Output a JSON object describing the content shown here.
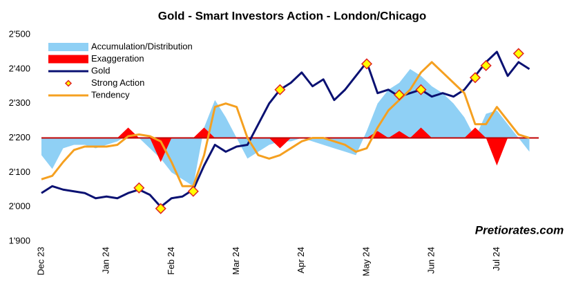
{
  "chart_data": {
    "type": "line",
    "title": "Gold - Smart Investors Action - London/Chicago",
    "watermark": "Pretiorates.com",
    "categories": [
      "Dec 23",
      null,
      null,
      null,
      null,
      null,
      "Jan 24",
      null,
      null,
      null,
      null,
      null,
      "Feb 24",
      null,
      null,
      null,
      null,
      null,
      "Mar 24",
      null,
      null,
      null,
      null,
      null,
      "Apr 24",
      null,
      null,
      null,
      null,
      null,
      "May 24",
      null,
      null,
      null,
      null,
      null,
      "Jun 24",
      null,
      null,
      null,
      null,
      null,
      "Jul 24",
      null,
      null,
      null
    ],
    "ylim": [
      1900,
      2500
    ],
    "yticks": [
      {
        "value": 1900,
        "label": "1'900"
      },
      {
        "value": 2000,
        "label": "2'000"
      },
      {
        "value": 2100,
        "label": "2'100"
      },
      {
        "value": 2200,
        "label": "2'200"
      },
      {
        "value": 2300,
        "label": "2'300"
      },
      {
        "value": 2400,
        "label": "2'400"
      },
      {
        "value": 2500,
        "label": "2'500"
      }
    ],
    "reference_line": {
      "value": 2200,
      "color": "#c00000"
    },
    "legend": "upper left",
    "series": [
      {
        "name": "Accumulation/Distribution",
        "kind": "area",
        "color": "#8fd0f5",
        "values": [
          2150,
          2110,
          2170,
          2180,
          2180,
          2170,
          2180,
          2190,
          2210,
          2200,
          2170,
          2140,
          2100,
          2080,
          2060,
          2230,
          2310,
          2260,
          2200,
          2140,
          2160,
          2180,
          2190,
          2190,
          2200,
          2190,
          2180,
          2170,
          2160,
          2150,
          2220,
          2300,
          2340,
          2360,
          2400,
          2380,
          2350,
          2330,
          2300,
          2260,
          2200,
          2270,
          2280,
          2240,
          2200,
          2160
        ]
      },
      {
        "name": "Exaggeration",
        "kind": "area",
        "color": "#ff0000",
        "values": [
          2200,
          2200,
          2200,
          2200,
          2200,
          2200,
          2200,
          2200,
          2230,
          2200,
          2200,
          2130,
          2200,
          2200,
          2200,
          2230,
          2200,
          2200,
          2200,
          2200,
          2200,
          2200,
          2170,
          2200,
          2200,
          2200,
          2200,
          2200,
          2200,
          2200,
          2200,
          2220,
          2200,
          2220,
          2200,
          2230,
          2200,
          2200,
          2200,
          2200,
          2230,
          2200,
          2120,
          2200,
          2200,
          2200
        ]
      },
      {
        "name": "Gold",
        "kind": "line",
        "color": "#0a1172",
        "values": [
          2040,
          2060,
          2050,
          2045,
          2040,
          2025,
          2030,
          2025,
          2040,
          2050,
          2035,
          2000,
          2025,
          2030,
          2050,
          2120,
          2180,
          2160,
          2175,
          2180,
          2240,
          2300,
          2340,
          2360,
          2390,
          2350,
          2370,
          2310,
          2340,
          2380,
          2420,
          2330,
          2340,
          2320,
          2330,
          2340,
          2320,
          2330,
          2320,
          2340,
          2380,
          2420,
          2450,
          2380,
          2420,
          2400
        ]
      },
      {
        "name": "Strong Action",
        "kind": "scatter",
        "color": "#ffff00",
        "edge": "#e02020",
        "values": [
          null,
          null,
          null,
          null,
          null,
          null,
          null,
          null,
          null,
          2055,
          null,
          1995,
          null,
          null,
          2045,
          null,
          null,
          null,
          null,
          null,
          null,
          null,
          2340,
          null,
          null,
          null,
          null,
          null,
          null,
          null,
          2415,
          null,
          null,
          2325,
          null,
          2340,
          null,
          null,
          null,
          null,
          2375,
          2410,
          null,
          null,
          2445,
          null
        ]
      },
      {
        "name": "Tendency",
        "kind": "line",
        "color": "#f5a020",
        "values": [
          2080,
          2090,
          2130,
          2165,
          2175,
          2175,
          2175,
          2180,
          2205,
          2210,
          2205,
          2190,
          2130,
          2060,
          2060,
          2150,
          2290,
          2300,
          2290,
          2200,
          2150,
          2140,
          2150,
          2170,
          2190,
          2200,
          2200,
          2190,
          2180,
          2160,
          2170,
          2230,
          2280,
          2310,
          2340,
          2390,
          2420,
          2390,
          2360,
          2330,
          2240,
          2240,
          2290,
          2250,
          2210,
          2200
        ]
      }
    ]
  }
}
